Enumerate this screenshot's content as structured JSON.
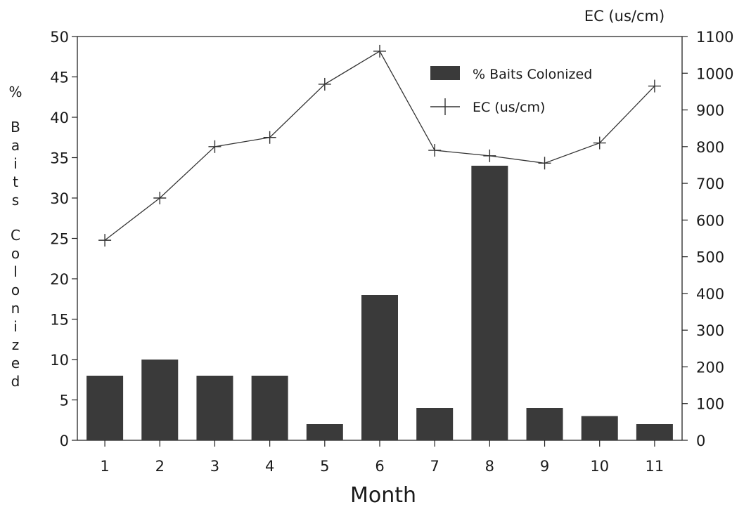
{
  "chart_data": {
    "type": "bar",
    "categories": [
      "1",
      "2",
      "3",
      "4",
      "5",
      "6",
      "7",
      "8",
      "9",
      "10",
      "11"
    ],
    "series": [
      {
        "name": "% Baits Colonized",
        "type": "bar",
        "axis": "left",
        "values": [
          8,
          10,
          8,
          8,
          2,
          18,
          4,
          34,
          4,
          3,
          2
        ],
        "color": "#3a3a3a"
      },
      {
        "name": "EC (us/cm)",
        "type": "line",
        "axis": "right",
        "values": [
          545,
          660,
          800,
          825,
          970,
          1060,
          790,
          775,
          755,
          810,
          965
        ],
        "color": "#333333"
      }
    ],
    "xlabel": "Month",
    "ylabel": "% Baits Colonized",
    "y2label": "EC (us/cm)",
    "ylim": [
      0,
      50
    ],
    "y2lim": [
      0,
      1100
    ],
    "yticks": [
      0,
      5,
      10,
      15,
      20,
      25,
      30,
      35,
      40,
      45,
      50
    ],
    "y2ticks": [
      0,
      100,
      200,
      300,
      400,
      500,
      600,
      700,
      800,
      900,
      1000,
      1100
    ],
    "legend_position": "top-right",
    "grid": false
  }
}
